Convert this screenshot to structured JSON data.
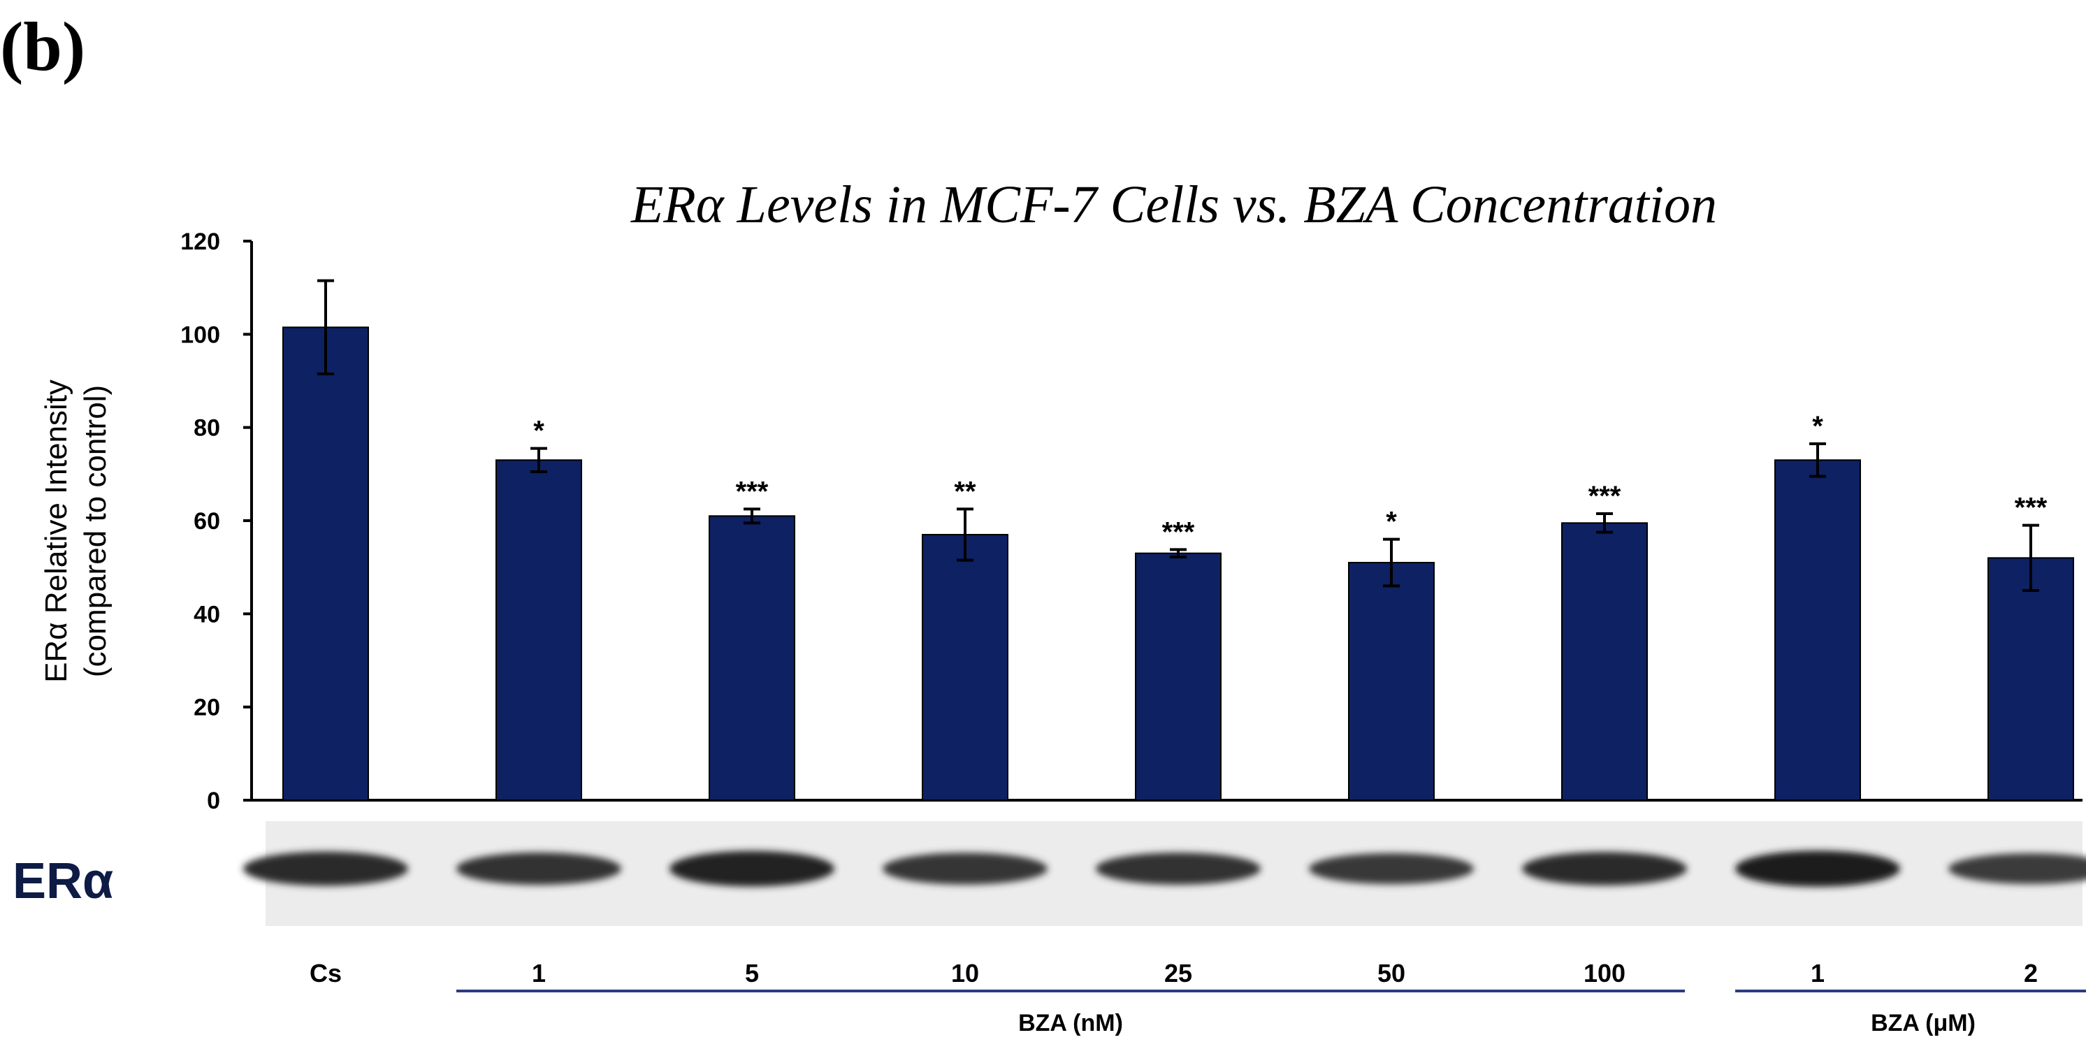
{
  "panel_label": "(b)",
  "colors": {
    "bar": "#0d2163",
    "axis": "#000000",
    "group_line": "#2a3d80",
    "blot_label": "#0d1b45"
  },
  "blot": {
    "label": "ERα",
    "intensities": [
      0.85,
      0.72,
      0.95,
      0.68,
      0.7,
      0.62,
      0.8,
      0.98,
      0.6
    ]
  },
  "groups": [
    {
      "label": "BZA (nM)",
      "from": 1,
      "to": 6
    },
    {
      "label": "BZA (μM)",
      "from": 7,
      "to": 8
    }
  ],
  "chart_data": {
    "type": "bar",
    "title": "ERα Levels in MCF-7 Cells vs. BZA Concentration",
    "ylabel_line1": "ERα Relative Intensity",
    "ylabel_line2": "(compared to control)",
    "xlabel": "",
    "ylim": [
      0,
      120
    ],
    "yticks": [
      0,
      20,
      40,
      60,
      80,
      100,
      120
    ],
    "categories": [
      "Cs",
      "1",
      "5",
      "10",
      "25",
      "50",
      "100",
      "1",
      "2"
    ],
    "values": [
      101.5,
      73,
      61,
      57,
      53,
      51,
      59.5,
      73,
      52
    ],
    "errors": [
      10,
      2.5,
      1.5,
      5.5,
      0.8,
      5,
      2,
      3.5,
      7
    ],
    "significance": [
      "",
      "*",
      "***",
      "**",
      "***",
      "*",
      "***",
      "*",
      "***"
    ]
  }
}
